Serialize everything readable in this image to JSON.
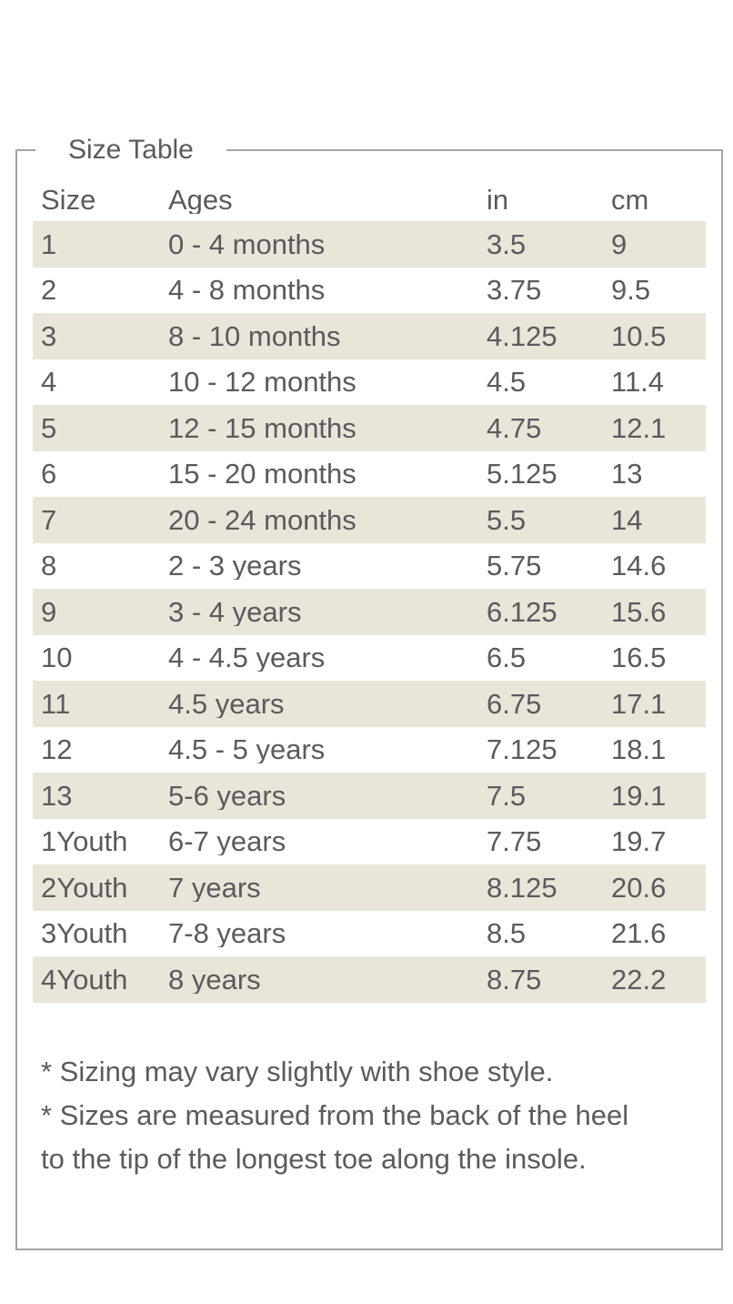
{
  "box": {
    "legend": "Size Table"
  },
  "table": {
    "headers": {
      "size": "Size",
      "ages": "Ages",
      "in": "in",
      "cm": "cm"
    },
    "rows": [
      {
        "size": "1",
        "ages": "0 - 4 months",
        "in": "3.5",
        "cm": "9"
      },
      {
        "size": "2",
        "ages": "4 - 8 months",
        "in": "3.75",
        "cm": "9.5"
      },
      {
        "size": "3",
        "ages": "8 - 10 months",
        "in": "4.125",
        "cm": "10.5"
      },
      {
        "size": "4",
        "ages": "10 - 12 months",
        "in": "4.5",
        "cm": "11.4"
      },
      {
        "size": "5",
        "ages": "12 - 15 months",
        "in": "4.75",
        "cm": "12.1"
      },
      {
        "size": "6",
        "ages": "15 - 20 months",
        "in": "5.125",
        "cm": "13"
      },
      {
        "size": "7",
        "ages": "20 - 24 months",
        "in": "5.5",
        "cm": "14"
      },
      {
        "size": "8",
        "ages": "2 - 3 years",
        "in": "5.75",
        "cm": "14.6"
      },
      {
        "size": "9",
        "ages": "3 - 4 years",
        "in": "6.125",
        "cm": "15.6"
      },
      {
        "size": "10",
        "ages": "4 - 4.5 years",
        "in": "6.5",
        "cm": "16.5"
      },
      {
        "size": "11",
        "ages": "4.5 years",
        "in": "6.75",
        "cm": "17.1"
      },
      {
        "size": "12",
        "ages": "4.5 - 5 years",
        "in": "7.125",
        "cm": "18.1"
      },
      {
        "size": "13",
        "ages": "5-6 years",
        "in": "7.5",
        "cm": "19.1"
      },
      {
        "size": "1Youth",
        "ages": "6-7 years",
        "in": "7.75",
        "cm": "19.7"
      },
      {
        "size": "2Youth",
        "ages": "7 years",
        "in": "8.125",
        "cm": "20.6"
      },
      {
        "size": "3Youth",
        "ages": "7-8 years",
        "in": "8.5",
        "cm": "21.6"
      },
      {
        "size": "4Youth",
        "ages": "8 years",
        "in": "8.75",
        "cm": "22.2"
      }
    ]
  },
  "notes": {
    "lines": [
      "* Sizing may vary slightly with shoe style.",
      "* Sizes are measured from the back of the heel",
      "to the tip of the longest toe along the insole."
    ]
  },
  "colors": {
    "row_shade": "#e9e5d8",
    "border": "#a3a3a3",
    "text": "#5b5a5e"
  }
}
